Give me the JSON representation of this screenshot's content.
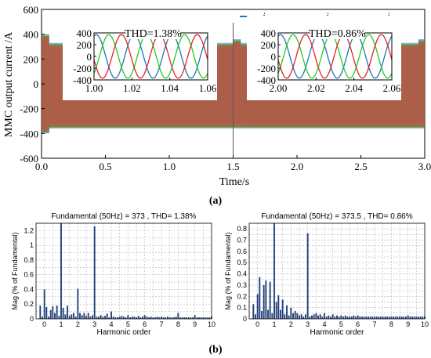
{
  "panel_labels": {
    "a": "(a)",
    "b": "(b)"
  },
  "colors": {
    "ia": "#1f77b4",
    "ib": "#22cc22",
    "ic": "#e8202a",
    "bar": "#1f3f7a",
    "grid": "#b5b5b5",
    "axis": "#000000"
  },
  "chart_data": [
    {
      "type": "line",
      "ylabel": "MMC output current /A",
      "xlabel": "Time/s",
      "xlim": [
        0,
        3.0
      ],
      "ylim": [
        -600,
        600
      ],
      "xticks": [
        "0.0",
        "0.5",
        "1.0",
        "1.5",
        "2.0",
        "2.5",
        "3.0"
      ],
      "yticks": [
        "-600",
        "-400",
        "-200",
        "0",
        "200",
        "400",
        "600"
      ],
      "legend": {
        "placement": "top-right",
        "entries": [
          {
            "base": "i",
            "sub": "va"
          },
          {
            "base": "i",
            "sub": "vb"
          },
          {
            "base": "i",
            "sub": "vc"
          }
        ]
      },
      "envelope": [
        {
          "t0": 0.0,
          "t1": 0.06,
          "max": 400,
          "min": -400
        },
        {
          "t0": 0.06,
          "t1": 1.5,
          "max": 330,
          "min": -360
        },
        {
          "t0": 1.5,
          "t1": 1.56,
          "max": 360,
          "min": -360
        },
        {
          "t0": 1.56,
          "t1": 2.95,
          "max": 330,
          "min": -360
        },
        {
          "t0": 2.95,
          "t1": 3.0,
          "max": 360,
          "min": -360
        }
      ],
      "divider_x": 1.5
    },
    {
      "type": "line",
      "annotation": "THD=1.38%",
      "xlim": [
        1.0,
        1.06
      ],
      "ylim": [
        -400,
        400
      ],
      "xticks": [
        "1.00",
        "1.02",
        "1.04",
        "1.06"
      ],
      "yticks": [
        "400",
        "200",
        "0",
        "-200",
        "-400"
      ],
      "amplitude": 370,
      "frequency_hz": 50
    },
    {
      "type": "line",
      "annotation": "THD=0.86%",
      "xlim": [
        2.0,
        2.06
      ],
      "ylim": [
        -400,
        400
      ],
      "xticks": [
        "2.00",
        "2.02",
        "2.04",
        "2.06"
      ],
      "yticks": [
        "400",
        "200",
        "0",
        "-200",
        "-400"
      ],
      "amplitude": 370,
      "frequency_hz": 50
    },
    {
      "type": "bar",
      "title": "Fundamental (50Hz) = 373 , THD= 1.38%",
      "xlabel": "Harmonic order",
      "ylabel": "Mag (% of Fundamental)",
      "xlim": [
        -0.5,
        10
      ],
      "ylim": [
        0,
        1.3
      ],
      "xticks": [
        "0",
        "1",
        "2",
        "3",
        "4",
        "5",
        "6",
        "7",
        "8",
        "9",
        "10"
      ],
      "yticks": [
        "0",
        "0.2",
        "0.4",
        "0.6",
        "0.8",
        "1",
        "1.2"
      ],
      "x": [
        -0.25,
        -0.125,
        0,
        0.125,
        0.25,
        0.375,
        0.5,
        0.625,
        0.75,
        0.875,
        1,
        1.125,
        1.25,
        1.375,
        1.5,
        1.625,
        1.75,
        1.875,
        2,
        2.125,
        2.25,
        2.375,
        2.5,
        2.625,
        2.75,
        2.875,
        3,
        3.125,
        3.25,
        3.375,
        3.5,
        3.625,
        3.75,
        3.875,
        4,
        4.125,
        4.25,
        4.375,
        4.5,
        4.625,
        4.75,
        4.875,
        5,
        5.125,
        5.25,
        5.375,
        5.5,
        5.625,
        5.75,
        5.875,
        6,
        6.125,
        6.25,
        6.375,
        6.5,
        6.625,
        6.75,
        6.875,
        7,
        7.125,
        7.25,
        7.375,
        7.5,
        7.625,
        7.75,
        7.875,
        8,
        8.125,
        8.25,
        8.375,
        8.5,
        8.625,
        8.75,
        8.875,
        9,
        9.125,
        9.25,
        9.375,
        9.5,
        9.625,
        9.75,
        9.875,
        10
      ],
      "values": [
        0.18,
        0.03,
        0.4,
        0.16,
        0.03,
        0.12,
        0.17,
        0.08,
        0.18,
        0.04,
        1.3,
        0.15,
        0.06,
        0.18,
        0.04,
        0.06,
        0.08,
        0.03,
        0.41,
        0.08,
        0.05,
        0.08,
        0.04,
        0.08,
        0.03,
        0.05,
        1.26,
        0.03,
        0.03,
        0.05,
        0.03,
        0.04,
        0.07,
        0.02,
        0.1,
        0.03,
        0.02,
        0.02,
        0.03,
        0.04,
        0.03,
        0.02,
        0.05,
        0.02,
        0.03,
        0.03,
        0.02,
        0.04,
        0.02,
        0.03,
        0.05,
        0.03,
        0.02,
        0.03,
        0.02,
        0.02,
        0.03,
        0.02,
        0.03,
        0.02,
        0.02,
        0.03,
        0.02,
        0.02,
        0.02,
        0.03,
        0.08,
        0.02,
        0.02,
        0.02,
        0.02,
        0.02,
        0.02,
        0.02,
        0.05,
        0.02,
        0.02,
        0.02,
        0.02,
        0.02,
        0.02,
        0.02,
        0.03
      ]
    },
    {
      "type": "bar",
      "title": "Fundamental (50Hz) = 373.5 , THD= 0.86%",
      "xlabel": "Harmonic order",
      "ylabel": "Mag (% of Fundamental)",
      "xlim": [
        -0.5,
        10
      ],
      "ylim": [
        0,
        0.85
      ],
      "xticks": [
        "0",
        "1",
        "2",
        "3",
        "4",
        "5",
        "6",
        "7",
        "8",
        "9",
        "10"
      ],
      "yticks": [
        "0",
        "0.1",
        "0.2",
        "0.3",
        "0.4",
        "0.5",
        "0.6",
        "0.7",
        "0.8"
      ],
      "x": [
        -0.25,
        -0.125,
        0,
        0.125,
        0.25,
        0.375,
        0.5,
        0.625,
        0.75,
        0.875,
        1,
        1.125,
        1.25,
        1.375,
        1.5,
        1.625,
        1.75,
        1.875,
        2,
        2.125,
        2.25,
        2.375,
        2.5,
        2.625,
        2.75,
        2.875,
        3,
        3.125,
        3.25,
        3.375,
        3.5,
        3.625,
        3.75,
        3.875,
        4,
        4.125,
        4.25,
        4.375,
        4.5,
        4.625,
        4.75,
        4.875,
        5,
        5.125,
        5.25,
        5.375,
        5.5,
        5.625,
        5.75,
        5.875,
        6,
        6.125,
        6.25,
        6.375,
        6.5,
        6.625,
        6.75,
        6.875,
        7,
        7.125,
        7.25,
        7.375,
        7.5,
        7.625,
        7.75,
        7.875,
        8,
        8.125,
        8.25,
        8.375,
        8.5,
        8.625,
        8.75,
        8.875,
        9,
        9.125,
        9.25,
        9.375,
        9.5,
        9.625,
        9.75,
        9.875,
        10
      ],
      "values": [
        0.13,
        0.04,
        0.22,
        0.37,
        0.07,
        0.3,
        0.34,
        0.08,
        0.33,
        0.05,
        0.85,
        0.15,
        0.21,
        0.08,
        0.17,
        0.04,
        0.12,
        0.03,
        0.1,
        0.05,
        0.07,
        0.05,
        0.03,
        0.04,
        0.02,
        0.04,
        0.76,
        0.02,
        0.03,
        0.04,
        0.05,
        0.03,
        0.04,
        0.02,
        0.05,
        0.02,
        0.03,
        0.02,
        0.04,
        0.02,
        0.03,
        0.02,
        0.03,
        0.02,
        0.03,
        0.02,
        0.02,
        0.02,
        0.03,
        0.02,
        0.03,
        0.02,
        0.02,
        0.02,
        0.02,
        0.02,
        0.02,
        0.02,
        0.02,
        0.02,
        0.02,
        0.02,
        0.02,
        0.02,
        0.02,
        0.02,
        0.02,
        0.02,
        0.02,
        0.02,
        0.02,
        0.02,
        0.02,
        0.02,
        0.03,
        0.02,
        0.02,
        0.02,
        0.02,
        0.02,
        0.02,
        0.02,
        0.02
      ]
    }
  ]
}
